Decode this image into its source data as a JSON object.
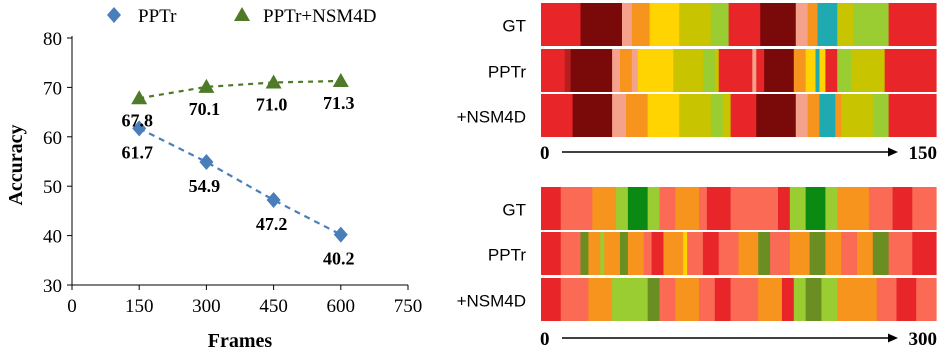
{
  "chart_data": [
    {
      "type": "line",
      "title": "",
      "xlabel": "Frames",
      "ylabel": "Accuracy",
      "x_ticks": [
        0,
        150,
        300,
        450,
        600,
        750
      ],
      "y_ticks": [
        30,
        40,
        50,
        60,
        70,
        80
      ],
      "xlim": [
        0,
        750
      ],
      "ylim": [
        30,
        80
      ],
      "grid": false,
      "legend_position": "top",
      "series": [
        {
          "name": "PPTr",
          "color": "#4A7EBB",
          "marker": "diamond",
          "x": [
            150,
            300,
            450,
            600
          ],
          "y": [
            61.7,
            54.9,
            47.2,
            40.2
          ],
          "labels": [
            "61.7",
            "54.9",
            "47.2",
            "40.2"
          ]
        },
        {
          "name": "PPTr+NSM4D",
          "color": "#4F7A28",
          "marker": "triangle",
          "x": [
            150,
            300,
            450,
            600
          ],
          "y": [
            67.8,
            70.1,
            71.0,
            71.3
          ],
          "labels": [
            "67.8",
            "70.1",
            "71.0",
            "71.3"
          ]
        }
      ]
    },
    {
      "type": "heatmap",
      "description_kind": "segmentation-timeline",
      "rows": [
        "GT",
        "PPTr",
        "+NSM4D"
      ],
      "x_range": [
        0,
        150
      ],
      "axis_start_label": "0",
      "axis_end_label": "150",
      "segments": {
        "GT": [
          [
            0,
            0.1,
            "#E8262A"
          ],
          [
            0.1,
            0.205,
            "#7A0A0A"
          ],
          [
            0.205,
            0.23,
            "#F4A28C"
          ],
          [
            0.23,
            0.275,
            "#F7941D"
          ],
          [
            0.275,
            0.35,
            "#FFD400"
          ],
          [
            0.35,
            0.43,
            "#C8C400"
          ],
          [
            0.43,
            0.475,
            "#9ACD32"
          ],
          [
            0.475,
            0.555,
            "#E8262A"
          ],
          [
            0.555,
            0.645,
            "#7A0A0A"
          ],
          [
            0.645,
            0.675,
            "#F4A28C"
          ],
          [
            0.675,
            0.7,
            "#F7941D"
          ],
          [
            0.7,
            0.75,
            "#1FA9B0"
          ],
          [
            0.75,
            0.79,
            "#C8C400"
          ],
          [
            0.79,
            0.88,
            "#9ACD32"
          ],
          [
            0.88,
            1,
            "#E8262A"
          ]
        ],
        "PPTr": [
          [
            0,
            0.06,
            "#E8262A"
          ],
          [
            0.06,
            0.075,
            "#B81E1E"
          ],
          [
            0.075,
            0.18,
            "#7A0A0A"
          ],
          [
            0.18,
            0.2,
            "#F4A28C"
          ],
          [
            0.2,
            0.23,
            "#F7941D"
          ],
          [
            0.23,
            0.245,
            "#F4A28C"
          ],
          [
            0.245,
            0.335,
            "#FFD400"
          ],
          [
            0.335,
            0.41,
            "#C8C400"
          ],
          [
            0.41,
            0.44,
            "#9ACD32"
          ],
          [
            0.44,
            0.45,
            "#C8C400"
          ],
          [
            0.45,
            0.535,
            "#E8262A"
          ],
          [
            0.535,
            0.545,
            "#F4A28C"
          ],
          [
            0.545,
            0.565,
            "#E8262A"
          ],
          [
            0.565,
            0.64,
            "#7A0A0A"
          ],
          [
            0.64,
            0.67,
            "#F7941D"
          ],
          [
            0.67,
            0.695,
            "#FFD400"
          ],
          [
            0.695,
            0.705,
            "#1FA9B0"
          ],
          [
            0.705,
            0.72,
            "#FFD400"
          ],
          [
            0.72,
            0.75,
            "#E8262A"
          ],
          [
            0.75,
            0.785,
            "#9ACD32"
          ],
          [
            0.785,
            0.87,
            "#C8C400"
          ],
          [
            0.87,
            1,
            "#E8262A"
          ]
        ],
        "+NSM4D": [
          [
            0,
            0.08,
            "#E8262A"
          ],
          [
            0.08,
            0.18,
            "#7A0A0A"
          ],
          [
            0.18,
            0.215,
            "#F4A28C"
          ],
          [
            0.215,
            0.27,
            "#F7941D"
          ],
          [
            0.27,
            0.35,
            "#FFD400"
          ],
          [
            0.35,
            0.43,
            "#C8C400"
          ],
          [
            0.43,
            0.46,
            "#9ACD32"
          ],
          [
            0.46,
            0.48,
            "#C8C400"
          ],
          [
            0.48,
            0.545,
            "#E8262A"
          ],
          [
            0.545,
            0.645,
            "#7A0A0A"
          ],
          [
            0.645,
            0.675,
            "#F4A28C"
          ],
          [
            0.675,
            0.705,
            "#F7941D"
          ],
          [
            0.705,
            0.745,
            "#1FA9B0"
          ],
          [
            0.745,
            0.76,
            "#F7941D"
          ],
          [
            0.76,
            0.84,
            "#C8C400"
          ],
          [
            0.84,
            0.88,
            "#9ACD32"
          ],
          [
            0.88,
            1,
            "#E8262A"
          ]
        ]
      }
    },
    {
      "type": "heatmap",
      "description_kind": "segmentation-timeline",
      "rows": [
        "GT",
        "PPTr",
        "+NSM4D"
      ],
      "x_range": [
        0,
        300
      ],
      "axis_start_label": "0",
      "axis_end_label": "300",
      "segments": {
        "GT": [
          [
            0,
            0.05,
            "#E8262A"
          ],
          [
            0.05,
            0.13,
            "#FA6A55"
          ],
          [
            0.13,
            0.19,
            "#F7941D"
          ],
          [
            0.19,
            0.22,
            "#9ACD32"
          ],
          [
            0.22,
            0.27,
            "#0A8A12"
          ],
          [
            0.27,
            0.3,
            "#9ACD32"
          ],
          [
            0.3,
            0.34,
            "#FA6A55"
          ],
          [
            0.34,
            0.4,
            "#F7941D"
          ],
          [
            0.4,
            0.42,
            "#FA6A55"
          ],
          [
            0.42,
            0.48,
            "#E8262A"
          ],
          [
            0.48,
            0.52,
            "#FA6A55"
          ],
          [
            0.52,
            0.6,
            "#FA6A55"
          ],
          [
            0.6,
            0.63,
            "#E8262A"
          ],
          [
            0.63,
            0.67,
            "#9ACD32"
          ],
          [
            0.67,
            0.72,
            "#0A8A12"
          ],
          [
            0.72,
            0.75,
            "#9ACD32"
          ],
          [
            0.75,
            0.78,
            "#F7941D"
          ],
          [
            0.78,
            0.83,
            "#F7941D"
          ],
          [
            0.83,
            0.89,
            "#FA6A55"
          ],
          [
            0.89,
            0.94,
            "#E8262A"
          ],
          [
            0.94,
            1,
            "#FA6A55"
          ]
        ],
        "PPTr": [
          [
            0,
            0.05,
            "#E8262A"
          ],
          [
            0.05,
            0.1,
            "#FA6A55"
          ],
          [
            0.1,
            0.12,
            "#6B8E23"
          ],
          [
            0.12,
            0.15,
            "#F7941D"
          ],
          [
            0.15,
            0.16,
            "#9ACD32"
          ],
          [
            0.16,
            0.2,
            "#F7941D"
          ],
          [
            0.2,
            0.22,
            "#6B8E23"
          ],
          [
            0.22,
            0.26,
            "#F7941D"
          ],
          [
            0.26,
            0.28,
            "#FA6A55"
          ],
          [
            0.28,
            0.31,
            "#E8262A"
          ],
          [
            0.31,
            0.36,
            "#F7941D"
          ],
          [
            0.36,
            0.37,
            "#FFD400"
          ],
          [
            0.37,
            0.41,
            "#FA6A55"
          ],
          [
            0.41,
            0.45,
            "#E8262A"
          ],
          [
            0.45,
            0.5,
            "#FA6A55"
          ],
          [
            0.5,
            0.55,
            "#F7941D"
          ],
          [
            0.55,
            0.58,
            "#6B8E23"
          ],
          [
            0.58,
            0.63,
            "#FA6A55"
          ],
          [
            0.63,
            0.68,
            "#F7941D"
          ],
          [
            0.68,
            0.72,
            "#6B8E23"
          ],
          [
            0.72,
            0.76,
            "#F7941D"
          ],
          [
            0.76,
            0.8,
            "#FA6A55"
          ],
          [
            0.8,
            0.84,
            "#F7941D"
          ],
          [
            0.84,
            0.88,
            "#6B8E23"
          ],
          [
            0.88,
            0.94,
            "#FA6A55"
          ],
          [
            0.94,
            1,
            "#E8262A"
          ]
        ],
        "+NSM4D": [
          [
            0,
            0.05,
            "#E8262A"
          ],
          [
            0.05,
            0.12,
            "#FA6A55"
          ],
          [
            0.12,
            0.18,
            "#F7941D"
          ],
          [
            0.18,
            0.27,
            "#9ACD32"
          ],
          [
            0.27,
            0.3,
            "#6B8E23"
          ],
          [
            0.3,
            0.34,
            "#FA6A55"
          ],
          [
            0.34,
            0.4,
            "#F7941D"
          ],
          [
            0.4,
            0.44,
            "#FA6A55"
          ],
          [
            0.44,
            0.48,
            "#E8262A"
          ],
          [
            0.48,
            0.55,
            "#FA6A55"
          ],
          [
            0.55,
            0.61,
            "#F7941D"
          ],
          [
            0.61,
            0.64,
            "#E8262A"
          ],
          [
            0.64,
            0.67,
            "#9ACD32"
          ],
          [
            0.67,
            0.71,
            "#6B8E23"
          ],
          [
            0.71,
            0.75,
            "#9ACD32"
          ],
          [
            0.75,
            0.79,
            "#F7941D"
          ],
          [
            0.79,
            0.85,
            "#F7941D"
          ],
          [
            0.85,
            0.9,
            "#FA6A55"
          ],
          [
            0.9,
            0.95,
            "#E8262A"
          ],
          [
            0.95,
            1,
            "#FA6A55"
          ]
        ]
      }
    }
  ]
}
